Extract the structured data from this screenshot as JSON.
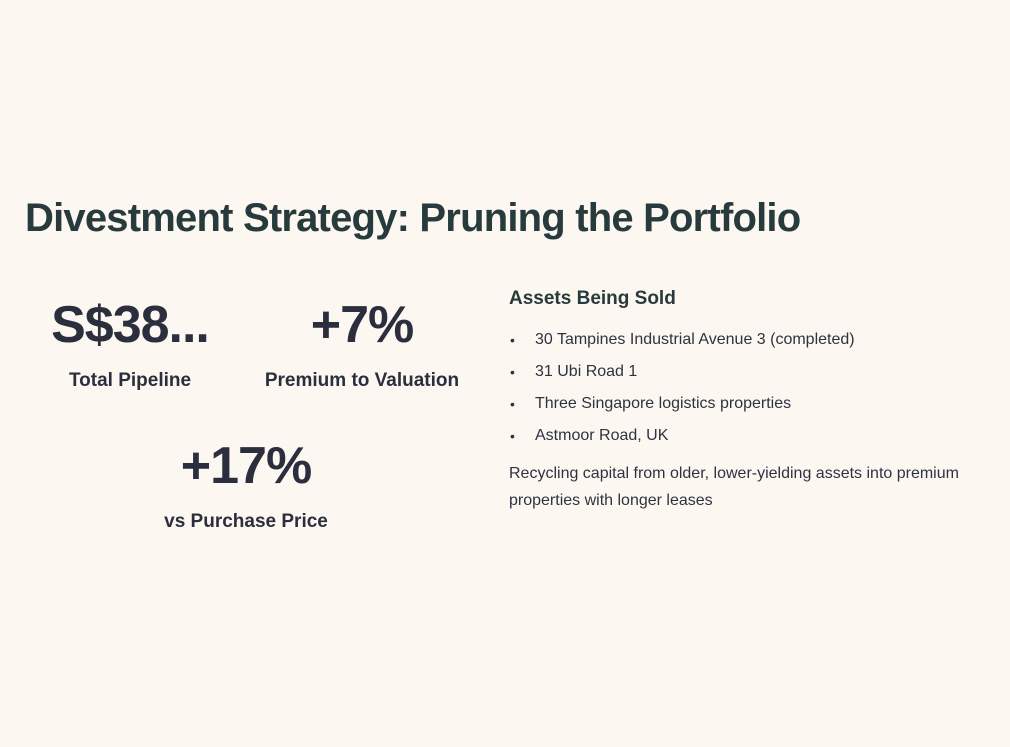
{
  "title": "Divestment Strategy: Pruning the Portfolio",
  "stats": {
    "pipeline": {
      "value": "S$38...",
      "label": "Total Pipeline"
    },
    "premium": {
      "value": "+7%",
      "label": "Premium to Valuation"
    },
    "purchase": {
      "value": "+17%",
      "label": "vs Purchase Price"
    }
  },
  "assets": {
    "heading": "Assets Being Sold",
    "items": [
      "30 Tampines Industrial Avenue 3 (completed)",
      "31 Ubi Road 1",
      "Three Singapore logistics properties",
      "Astmoor Road, UK"
    ],
    "summary": "Recycling capital from older, lower-yielding assets into premium properties with longer leases"
  }
}
